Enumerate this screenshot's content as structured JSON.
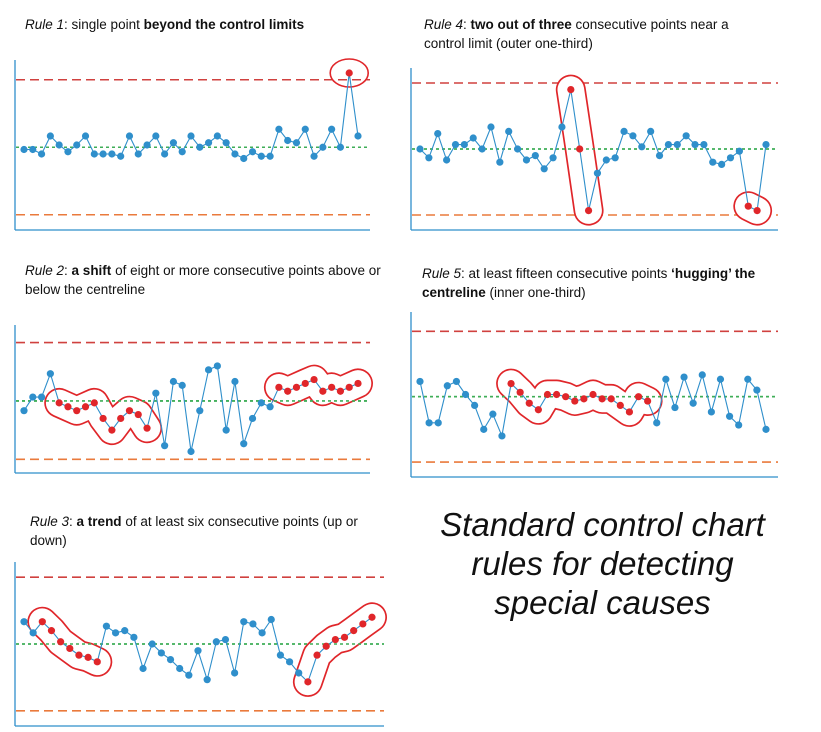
{
  "title_lines": [
    "Standard control chart",
    "rules for detecting",
    "special causes"
  ],
  "colors": {
    "ucl": "#d0413f",
    "lcl": "#ea7a3c",
    "centre": "#3fae57",
    "series": "#2f8fcb",
    "highlight": "#e0262a",
    "axis": "#2f8fcb"
  },
  "chart_data": [
    {
      "id": "rule1",
      "type": "line",
      "caption": {
        "rule": "Rule 1",
        "pre": ": single point ",
        "bold": "beyond the control limits",
        "post": ""
      },
      "ucl": 80,
      "cl": 50,
      "lcl": 20,
      "ylim": [
        15,
        87
      ],
      "values": [
        49,
        49,
        47,
        55,
        51,
        48,
        51,
        55,
        47,
        47,
        47,
        46,
        55,
        47,
        51,
        55,
        47,
        52,
        48,
        55,
        50,
        52,
        55,
        52,
        47,
        45,
        48,
        46,
        46,
        58,
        53,
        52,
        58,
        46,
        50,
        58,
        50,
        83,
        55
      ],
      "highlight_indices": [
        37
      ],
      "groups": [
        [
          37
        ]
      ]
    },
    {
      "id": "rule4",
      "type": "line",
      "caption": {
        "rule": "Rule 4",
        "pre": ": ",
        "bold": "two out of three",
        "post": " consecutive points near a control limit (outer one-third)"
      },
      "ucl": 80,
      "cl": 50,
      "lcl": 20,
      "ylim": [
        15,
        85
      ],
      "values": [
        50,
        46,
        57,
        45,
        52,
        52,
        55,
        50,
        60,
        44,
        58,
        50,
        45,
        47,
        41,
        46,
        60,
        77,
        50,
        22,
        39,
        45,
        46,
        58,
        56,
        51,
        58,
        47,
        52,
        52,
        56,
        52,
        52,
        44,
        43,
        46,
        49,
        24,
        22,
        52
      ],
      "highlight_indices": [
        17,
        18,
        19,
        37,
        38
      ],
      "groups": [
        [
          17,
          18,
          19
        ],
        [
          37,
          38
        ]
      ]
    },
    {
      "id": "rule2",
      "type": "line",
      "caption": {
        "rule": "Rule 2",
        "pre": ": ",
        "bold": "a shift",
        "post": " of eight or more consecutive points above or below the centreline"
      },
      "ucl": 80,
      "cl": 50,
      "lcl": 20,
      "ylim": [
        15,
        87
      ],
      "values": [
        45,
        52,
        52,
        64,
        49,
        47,
        45,
        47,
        49,
        41,
        35,
        41,
        45,
        43,
        36,
        54,
        27,
        60,
        58,
        24,
        45,
        66,
        68,
        35,
        60,
        28,
        41,
        49,
        47,
        57,
        55,
        57,
        59,
        61,
        55,
        57,
        55,
        57,
        59
      ],
      "highlight_indices": [
        4,
        5,
        6,
        7,
        8,
        9,
        10,
        11,
        12,
        13,
        14,
        29,
        30,
        31,
        32,
        33,
        34,
        35,
        36,
        37,
        38
      ],
      "groups": [
        [
          4,
          5,
          6,
          7,
          8,
          9,
          10,
          11,
          12,
          13,
          14
        ],
        [
          29,
          30,
          31,
          32,
          33,
          34,
          35,
          36,
          37,
          38
        ]
      ]
    },
    {
      "id": "rule5",
      "type": "line",
      "caption": {
        "rule": "Rule 5",
        "pre": ": at least fifteen consecutive points ",
        "bold": "‘hugging’ the centreline",
        "post": " (inner one-third)"
      },
      "ucl": 80,
      "cl": 50,
      "lcl": 20,
      "ylim": [
        15,
        87
      ],
      "values": [
        57,
        38,
        38,
        55,
        57,
        51,
        46,
        35,
        42,
        32,
        56,
        52,
        47,
        44,
        51,
        51,
        50,
        48,
        49,
        51,
        49,
        49,
        46,
        43,
        50,
        48,
        38,
        58,
        45,
        59,
        47,
        60,
        43,
        58,
        41,
        37,
        58,
        53,
        35
      ],
      "highlight_indices": [
        10,
        11,
        12,
        13,
        14,
        15,
        16,
        17,
        18,
        19,
        20,
        21,
        22,
        23,
        24,
        25
      ],
      "groups": [
        [
          10,
          11,
          12,
          13,
          14,
          15,
          16,
          17,
          18,
          19,
          20,
          21,
          22,
          23,
          24,
          25
        ]
      ]
    },
    {
      "id": "rule3",
      "type": "line",
      "caption": {
        "rule": "Rule 3",
        "pre": ": ",
        "bold": "a trend",
        "post": " of at least six consecutive points (up or down)"
      },
      "ucl": 80,
      "cl": 50,
      "lcl": 20,
      "ylim": [
        15,
        85
      ],
      "values": [
        60,
        55,
        60,
        56,
        51,
        48,
        45,
        44,
        42,
        58,
        55,
        56,
        53,
        39,
        50,
        46,
        43,
        39,
        36,
        47,
        34,
        51,
        52,
        37,
        60,
        59,
        55,
        61,
        45,
        42,
        37,
        33,
        45,
        49,
        52,
        53,
        56,
        59,
        62
      ],
      "highlight_indices": [
        2,
        3,
        4,
        5,
        6,
        7,
        8,
        31,
        32,
        33,
        34,
        35,
        36,
        37,
        38
      ],
      "groups": [
        [
          2,
          3,
          4,
          5,
          6,
          7,
          8
        ],
        [
          31,
          32,
          33,
          34,
          35,
          36,
          37,
          38
        ]
      ]
    }
  ]
}
